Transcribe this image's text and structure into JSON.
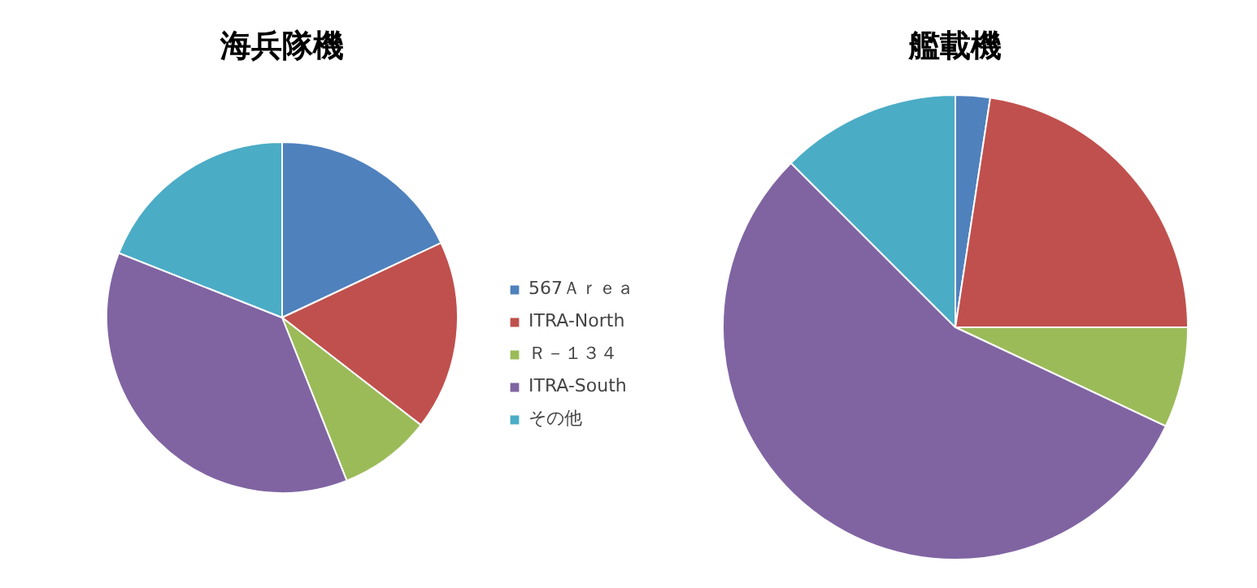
{
  "chart_data": [
    {
      "type": "pie",
      "title": "海兵隊機",
      "categories": [
        "567Ａｒｅａ",
        "ITRA-North",
        "Ｒ－１３４",
        "ITRA-South",
        "その他"
      ],
      "values": [
        18,
        17.5,
        8.5,
        37,
        19
      ],
      "colors": [
        "#4f81bd",
        "#c0504d",
        "#9bbb59",
        "#8064a2",
        "#4bacc6"
      ],
      "legend": "right"
    },
    {
      "type": "pie",
      "title": "艦載機",
      "categories": [
        null,
        null,
        null,
        null,
        null
      ],
      "values": [
        2.4,
        22.6,
        7,
        55.5,
        12.5
      ],
      "colors": [
        "#4f81bd",
        "#c0504d",
        "#9bbb59",
        "#8064a2",
        "#4bacc6"
      ]
    }
  ]
}
